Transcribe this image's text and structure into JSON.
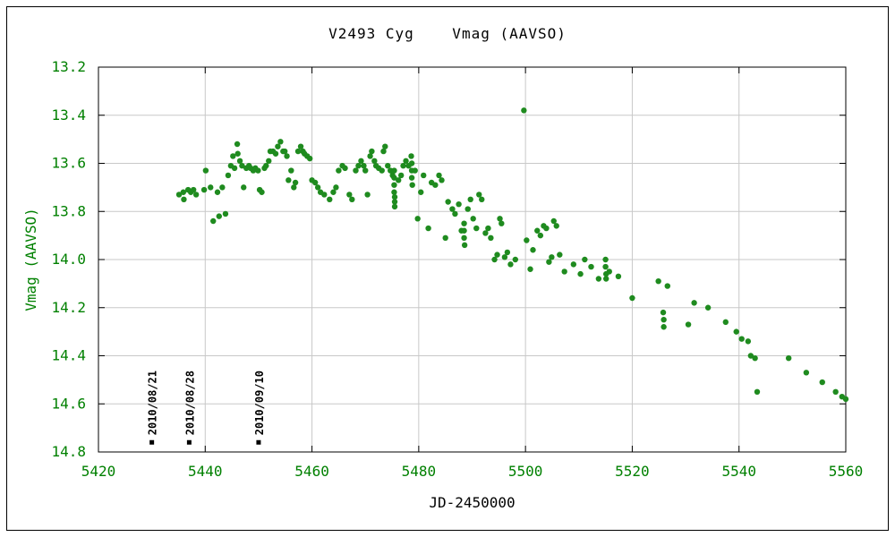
{
  "chart_data": {
    "type": "scatter",
    "title": "V2493 Cyg    Vmag (AAVSO)",
    "xlabel": "JD-2450000",
    "ylabel": "Vmag (AAVSO)",
    "xlim": [
      5420,
      5560
    ],
    "ylim": [
      13.2,
      14.8
    ],
    "y_inverted": true,
    "grid": true,
    "legend": "none",
    "xticks": [
      5420,
      5440,
      5460,
      5480,
      5500,
      5520,
      5540,
      5560
    ],
    "yticks": [
      13.2,
      13.4,
      13.6,
      13.8,
      14.0,
      14.2,
      14.4,
      14.6,
      14.8
    ],
    "grid_color": "#c8c8c8",
    "point_color": "#1f8b1f",
    "tick_label_color": "#008000",
    "xlabel_color": "#000000",
    "ylabel_color": "#008000",
    "annotation_color": "#000000",
    "series": [
      {
        "name": "Vmag (AAVSO)",
        "points": [
          [
            5435.1,
            13.73
          ],
          [
            5435.9,
            13.72
          ],
          [
            5436.0,
            13.75
          ],
          [
            5436.8,
            13.71
          ],
          [
            5437.3,
            13.72
          ],
          [
            5437.8,
            13.71
          ],
          [
            5438.3,
            13.73
          ],
          [
            5439.8,
            13.71
          ],
          [
            5440.1,
            13.63
          ],
          [
            5441.0,
            13.7
          ],
          [
            5441.5,
            13.84
          ],
          [
            5442.3,
            13.72
          ],
          [
            5442.6,
            13.82
          ],
          [
            5443.2,
            13.7
          ],
          [
            5443.8,
            13.81
          ],
          [
            5444.3,
            13.65
          ],
          [
            5444.8,
            13.61
          ],
          [
            5445.2,
            13.57
          ],
          [
            5445.5,
            13.62
          ],
          [
            5446.0,
            13.52
          ],
          [
            5446.1,
            13.56
          ],
          [
            5446.5,
            13.59
          ],
          [
            5446.9,
            13.61
          ],
          [
            5447.2,
            13.7
          ],
          [
            5447.7,
            13.62
          ],
          [
            5448.2,
            13.61
          ],
          [
            5448.5,
            13.62
          ],
          [
            5449.0,
            13.63
          ],
          [
            5449.4,
            13.62
          ],
          [
            5449.9,
            13.63
          ],
          [
            5450.2,
            13.71
          ],
          [
            5450.6,
            13.72
          ],
          [
            5451.1,
            13.62
          ],
          [
            5451.4,
            13.61
          ],
          [
            5451.9,
            13.59
          ],
          [
            5452.2,
            13.55
          ],
          [
            5452.7,
            13.55
          ],
          [
            5453.2,
            13.56
          ],
          [
            5453.6,
            13.53
          ],
          [
            5454.1,
            13.51
          ],
          [
            5454.6,
            13.55
          ],
          [
            5454.9,
            13.55
          ],
          [
            5455.3,
            13.57
          ],
          [
            5455.6,
            13.67
          ],
          [
            5456.1,
            13.63
          ],
          [
            5456.6,
            13.7
          ],
          [
            5456.9,
            13.68
          ],
          [
            5457.4,
            13.55
          ],
          [
            5457.9,
            13.53
          ],
          [
            5458.3,
            13.55
          ],
          [
            5458.6,
            13.56
          ],
          [
            5459.1,
            13.57
          ],
          [
            5459.6,
            13.58
          ],
          [
            5460.0,
            13.67
          ],
          [
            5460.6,
            13.68
          ],
          [
            5461.1,
            13.7
          ],
          [
            5461.6,
            13.72
          ],
          [
            5462.3,
            13.73
          ],
          [
            5463.3,
            13.75
          ],
          [
            5464.0,
            13.72
          ],
          [
            5464.5,
            13.7
          ],
          [
            5465.0,
            13.63
          ],
          [
            5465.7,
            13.61
          ],
          [
            5466.2,
            13.62
          ],
          [
            5467.0,
            13.73
          ],
          [
            5467.5,
            13.75
          ],
          [
            5468.2,
            13.63
          ],
          [
            5468.7,
            13.61
          ],
          [
            5469.2,
            13.59
          ],
          [
            5469.7,
            13.61
          ],
          [
            5470.0,
            13.63
          ],
          [
            5470.4,
            13.73
          ],
          [
            5470.9,
            13.57
          ],
          [
            5471.2,
            13.55
          ],
          [
            5471.7,
            13.59
          ],
          [
            5472.0,
            13.61
          ],
          [
            5472.5,
            13.62
          ],
          [
            5473.1,
            13.63
          ],
          [
            5473.4,
            13.55
          ],
          [
            5473.7,
            13.53
          ],
          [
            5474.2,
            13.61
          ],
          [
            5474.7,
            13.63
          ],
          [
            5475.1,
            13.65
          ],
          [
            5475.4,
            13.63
          ],
          [
            5475.4,
            13.66
          ],
          [
            5475.4,
            13.69
          ],
          [
            5475.4,
            13.72
          ],
          [
            5475.5,
            13.74
          ],
          [
            5475.5,
            13.76
          ],
          [
            5475.5,
            13.78
          ],
          [
            5476.2,
            13.67
          ],
          [
            5476.7,
            13.65
          ],
          [
            5477.1,
            13.61
          ],
          [
            5477.6,
            13.59
          ],
          [
            5478.1,
            13.61
          ],
          [
            5478.6,
            13.57
          ],
          [
            5478.7,
            13.6
          ],
          [
            5478.7,
            13.63
          ],
          [
            5478.7,
            13.66
          ],
          [
            5478.8,
            13.69
          ],
          [
            5479.3,
            13.63
          ],
          [
            5479.8,
            13.83
          ],
          [
            5480.4,
            13.72
          ],
          [
            5480.9,
            13.65
          ],
          [
            5481.8,
            13.87
          ],
          [
            5482.4,
            13.68
          ],
          [
            5483.1,
            13.69
          ],
          [
            5483.8,
            13.65
          ],
          [
            5484.3,
            13.67
          ],
          [
            5485.0,
            13.91
          ],
          [
            5485.5,
            13.76
          ],
          [
            5486.3,
            13.79
          ],
          [
            5486.8,
            13.81
          ],
          [
            5487.5,
            13.77
          ],
          [
            5488.0,
            13.88
          ],
          [
            5488.5,
            13.85
          ],
          [
            5488.5,
            13.88
          ],
          [
            5488.5,
            13.91
          ],
          [
            5488.6,
            13.94
          ],
          [
            5489.2,
            13.79
          ],
          [
            5489.7,
            13.75
          ],
          [
            5490.2,
            13.83
          ],
          [
            5490.8,
            13.87
          ],
          [
            5491.3,
            13.73
          ],
          [
            5491.8,
            13.75
          ],
          [
            5492.5,
            13.89
          ],
          [
            5493.0,
            13.87
          ],
          [
            5493.5,
            13.91
          ],
          [
            5494.2,
            14.0
          ],
          [
            5494.7,
            13.98
          ],
          [
            5495.2,
            13.83
          ],
          [
            5495.5,
            13.85
          ],
          [
            5496.1,
            13.99
          ],
          [
            5496.6,
            13.97
          ],
          [
            5497.2,
            14.02
          ],
          [
            5498.1,
            14.0
          ],
          [
            5499.7,
            13.38
          ],
          [
            5500.2,
            13.92
          ],
          [
            5500.9,
            14.04
          ],
          [
            5501.4,
            13.96
          ],
          [
            5502.2,
            13.88
          ],
          [
            5502.8,
            13.9
          ],
          [
            5503.4,
            13.86
          ],
          [
            5503.9,
            13.87
          ],
          [
            5504.4,
            14.01
          ],
          [
            5504.9,
            13.99
          ],
          [
            5505.3,
            13.84
          ],
          [
            5505.8,
            13.86
          ],
          [
            5506.4,
            13.98
          ],
          [
            5507.3,
            14.05
          ],
          [
            5509.0,
            14.02
          ],
          [
            5510.3,
            14.06
          ],
          [
            5511.1,
            14.0
          ],
          [
            5512.3,
            14.03
          ],
          [
            5513.7,
            14.08
          ],
          [
            5515.0,
            14.0
          ],
          [
            5515.0,
            14.03
          ],
          [
            5515.1,
            14.06
          ],
          [
            5515.1,
            14.08
          ],
          [
            5515.7,
            14.05
          ],
          [
            5517.4,
            14.07
          ],
          [
            5520.0,
            14.16
          ],
          [
            5524.9,
            14.09
          ],
          [
            5525.8,
            14.22
          ],
          [
            5525.9,
            14.25
          ],
          [
            5525.9,
            14.28
          ],
          [
            5526.6,
            14.11
          ],
          [
            5530.5,
            14.27
          ],
          [
            5531.6,
            14.18
          ],
          [
            5534.2,
            14.2
          ],
          [
            5537.5,
            14.26
          ],
          [
            5539.5,
            14.3
          ],
          [
            5540.5,
            14.33
          ],
          [
            5541.7,
            14.34
          ],
          [
            5542.2,
            14.4
          ],
          [
            5543.0,
            14.41
          ],
          [
            5543.4,
            14.55
          ],
          [
            5549.3,
            14.41
          ],
          [
            5552.6,
            14.47
          ],
          [
            5555.6,
            14.51
          ],
          [
            5558.1,
            14.55
          ],
          [
            5559.3,
            14.57
          ],
          [
            5560.0,
            14.58
          ]
        ]
      }
    ],
    "annotations": [
      {
        "jd": 5430,
        "label": "2010/08/21",
        "marker_mag": 14.76
      },
      {
        "jd": 5437,
        "label": "2010/08/28",
        "marker_mag": 14.76
      },
      {
        "jd": 5450,
        "label": "2010/09/10",
        "marker_mag": 14.76
      }
    ]
  }
}
